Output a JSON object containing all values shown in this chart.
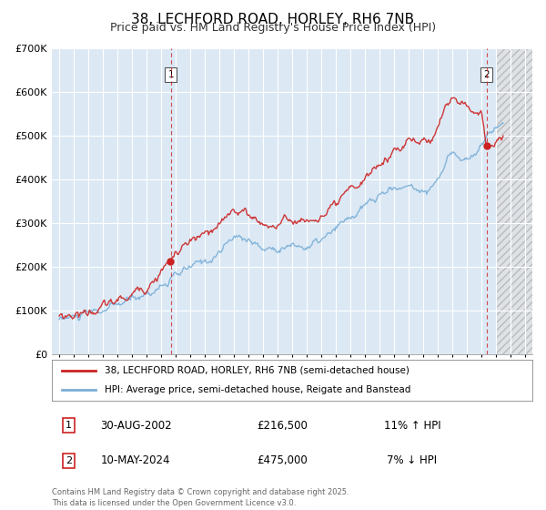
{
  "title": "38, LECHFORD ROAD, HORLEY, RH6 7NB",
  "subtitle": "Price paid vs. HM Land Registry's House Price Index (HPI)",
  "title_fontsize": 11,
  "subtitle_fontsize": 9,
  "bg_color": "#ffffff",
  "plot_bg_color": "#dce9f5",
  "hatch_bg_color": "#e8e8e8",
  "grid_color": "#ffffff",
  "red_color": "#cc2222",
  "blue_color": "#7aaed6",
  "vline_color": "#cc2222",
  "marker1_date": 2002.67,
  "marker2_date": 2024.37,
  "vline1_date": 2002.67,
  "vline2_date": 2024.37,
  "legend_line1": "38, LECHFORD ROAD, HORLEY, RH6 7NB (semi-detached house)",
  "legend_line2": "HPI: Average price, semi-detached house, Reigate and Banstead",
  "annotation1_date": "30-AUG-2002",
  "annotation1_price": "£216,500",
  "annotation1_hpi": "11% ↑ HPI",
  "annotation2_date": "10-MAY-2024",
  "annotation2_price": "£475,000",
  "annotation2_hpi": "7% ↓ HPI",
  "footer": "Contains HM Land Registry data © Crown copyright and database right 2025.\nThis data is licensed under the Open Government Licence v3.0.",
  "ylim": [
    0,
    700000
  ],
  "xlim": [
    1994.5,
    2027.5
  ],
  "hatch_start": 2025.0,
  "yticks": [
    0,
    100000,
    200000,
    300000,
    400000,
    500000,
    600000,
    700000
  ],
  "ytick_labels": [
    "£0",
    "£100K",
    "£200K",
    "£300K",
    "£400K",
    "£500K",
    "£600K",
    "£700K"
  ],
  "xticks": [
    1995,
    1996,
    1997,
    1998,
    1999,
    2000,
    2001,
    2002,
    2003,
    2004,
    2005,
    2006,
    2007,
    2008,
    2009,
    2010,
    2011,
    2012,
    2013,
    2014,
    2015,
    2016,
    2017,
    2018,
    2019,
    2020,
    2021,
    2022,
    2023,
    2024,
    2025,
    2026,
    2027
  ]
}
